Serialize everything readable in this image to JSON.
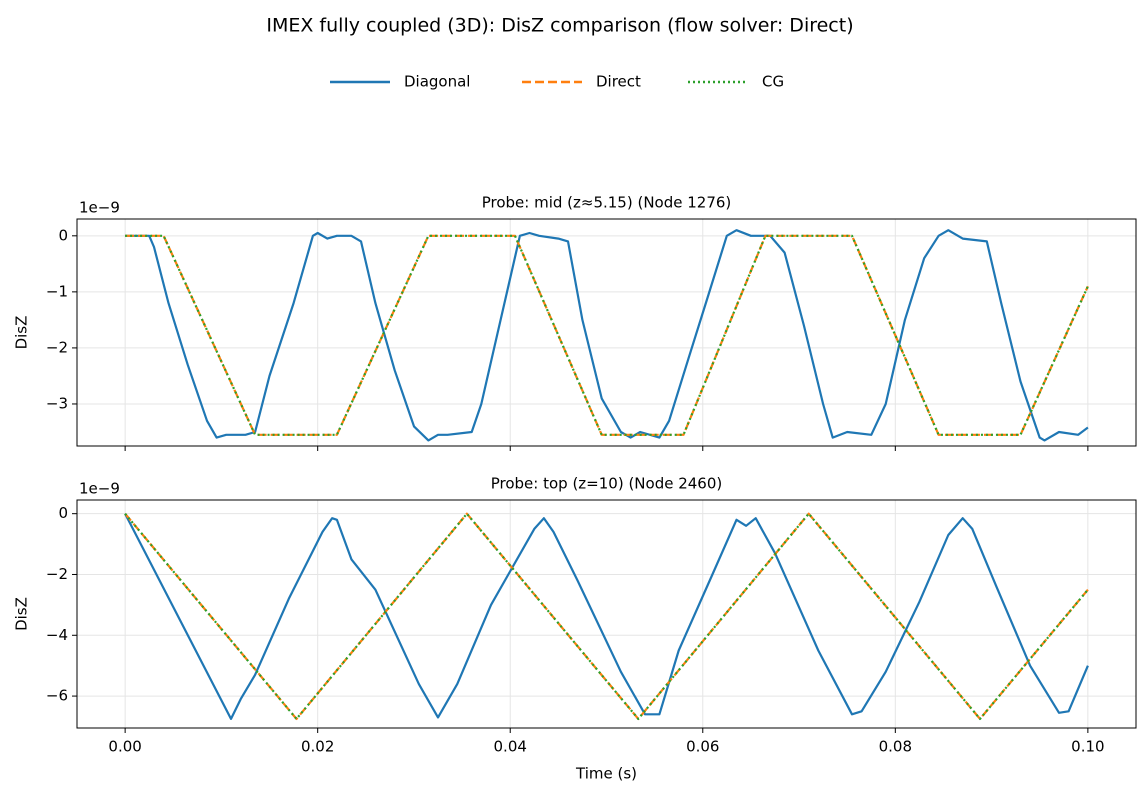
{
  "title": "IMEX fully coupled (3D): DisZ comparison (flow solver: Direct)",
  "chart_data": [
    {
      "type": "line",
      "title": "Probe: mid (z≈5.15) (Node 1276)",
      "y_label": "DisZ",
      "offset_label": "1e−9",
      "xlim": [
        -0.005,
        0.105
      ],
      "xticks": [
        0,
        0.02,
        0.04,
        0.06,
        0.08,
        0.1
      ],
      "ylim": [
        -3.75,
        0.3
      ],
      "yticks": [
        {
          "value": -3,
          "label": "−3"
        },
        {
          "value": -2,
          "label": "−2"
        },
        {
          "value": -1,
          "label": "−1"
        },
        0
      ],
      "grid": true,
      "series": [
        {
          "name": "Diagonal",
          "color": "#1f77b4",
          "style": "solid",
          "x": [
            0,
            0.0025,
            0.003,
            0.0045,
            0.0065,
            0.0085,
            0.0095,
            0.0105,
            0.0125,
            0.0135,
            0.015,
            0.0175,
            0.0195,
            0.02,
            0.021,
            0.022,
            0.0235,
            0.0245,
            0.026,
            0.028,
            0.03,
            0.0315,
            0.0325,
            0.0335,
            0.036,
            0.037,
            0.039,
            0.041,
            0.042,
            0.043,
            0.045,
            0.046,
            0.0475,
            0.0495,
            0.0515,
            0.0525,
            0.0535,
            0.0555,
            0.0565,
            0.0585,
            0.0605,
            0.0625,
            0.0635,
            0.065,
            0.067,
            0.0685,
            0.0705,
            0.0725,
            0.0735,
            0.075,
            0.0775,
            0.079,
            0.081,
            0.083,
            0.0845,
            0.0855,
            0.087,
            0.0895,
            0.091,
            0.093,
            0.095,
            0.0955,
            0.097,
            0.099,
            0.1
          ],
          "values": [
            0,
            0,
            -0.2,
            -1.2,
            -2.3,
            -3.3,
            -3.6,
            -3.55,
            -3.55,
            -3.5,
            -2.5,
            -1.2,
            0,
            0.05,
            -0.05,
            0,
            0,
            -0.1,
            -1.2,
            -2.4,
            -3.4,
            -3.65,
            -3.55,
            -3.55,
            -3.5,
            -3,
            -1.5,
            0,
            0.05,
            0,
            -0.05,
            -0.1,
            -1.5,
            -2.9,
            -3.5,
            -3.6,
            -3.5,
            -3.6,
            -3.3,
            -2.2,
            -1.1,
            0,
            0.1,
            0,
            0,
            -0.3,
            -1.6,
            -3,
            -3.6,
            -3.5,
            -3.55,
            -3,
            -1.5,
            -0.4,
            0,
            0.1,
            -0.05,
            -0.1,
            -1.2,
            -2.6,
            -3.6,
            -3.65,
            -3.5,
            -3.55,
            -3.42
          ]
        },
        {
          "name": "Direct",
          "color": "#ff7f0e",
          "style": "dashed",
          "x": [
            0,
            0.004,
            0.0135,
            0.022,
            0.0315,
            0.0405,
            0.0495,
            0.058,
            0.0665,
            0.0755,
            0.0845,
            0.093,
            0.1
          ],
          "values": [
            0,
            0,
            -3.55,
            -3.55,
            0,
            0,
            -3.55,
            -3.55,
            0,
            0,
            -3.55,
            -3.55,
            -0.9
          ]
        },
        {
          "name": "CG",
          "color": "#2ca02c",
          "style": "dotted",
          "x": [
            0,
            0.004,
            0.0135,
            0.022,
            0.0315,
            0.0405,
            0.0495,
            0.058,
            0.0665,
            0.0755,
            0.0845,
            0.093,
            0.1
          ],
          "values": [
            0,
            0,
            -3.55,
            -3.55,
            0,
            0,
            -3.55,
            -3.55,
            0,
            0,
            -3.55,
            -3.55,
            -0.9
          ]
        }
      ]
    },
    {
      "type": "line",
      "title": "Probe: top (z=10) (Node 2460)",
      "x_label": "Time (s)",
      "y_label": "DisZ",
      "offset_label": "1e−9",
      "xlim": [
        -0.005,
        0.105
      ],
      "xticks": [
        {
          "value": 0,
          "label": "0.00"
        },
        {
          "value": 0.02,
          "label": "0.02"
        },
        {
          "value": 0.04,
          "label": "0.04"
        },
        {
          "value": 0.06,
          "label": "0.06"
        },
        {
          "value": 0.08,
          "label": "0.08"
        },
        {
          "value": 0.1,
          "label": "0.10"
        }
      ],
      "ylim": [
        -7.05,
        0.45
      ],
      "yticks": [
        {
          "value": -6,
          "label": "−6"
        },
        {
          "value": -4,
          "label": "−4"
        },
        {
          "value": -2,
          "label": "−2"
        },
        0
      ],
      "grid": true,
      "series": [
        {
          "name": "Diagonal",
          "color": "#1f77b4",
          "style": "solid",
          "x": [
            0,
            0.011,
            0.012,
            0.0135,
            0.017,
            0.0205,
            0.0215,
            0.022,
            0.0235,
            0.026,
            0.0305,
            0.0325,
            0.0345,
            0.038,
            0.0425,
            0.0435,
            0.0445,
            0.047,
            0.0515,
            0.054,
            0.0555,
            0.0575,
            0.061,
            0.0635,
            0.0645,
            0.0655,
            0.0675,
            0.072,
            0.0755,
            0.0765,
            0.079,
            0.0825,
            0.0855,
            0.087,
            0.088,
            0.0905,
            0.094,
            0.097,
            0.098,
            0.1
          ],
          "values": [
            0,
            -6.75,
            -6.1,
            -5.3,
            -2.8,
            -0.6,
            -0.15,
            -0.2,
            -1.5,
            -2.5,
            -5.6,
            -6.7,
            -5.6,
            -3,
            -0.5,
            -0.15,
            -0.6,
            -2.2,
            -5.2,
            -6.6,
            -6.6,
            -4.5,
            -2,
            -0.2,
            -0.4,
            -0.15,
            -1.3,
            -4.5,
            -6.6,
            -6.5,
            -5.2,
            -2.9,
            -0.7,
            -0.15,
            -0.5,
            -2.4,
            -5,
            -6.55,
            -6.5,
            -5
          ]
        },
        {
          "name": "Direct",
          "color": "#ff7f0e",
          "style": "dashed",
          "x": [
            0,
            0.0178,
            0.0355,
            0.0533,
            0.071,
            0.0888,
            0.1
          ],
          "values": [
            0,
            -6.75,
            0,
            -6.75,
            0,
            -6.75,
            -2.5
          ]
        },
        {
          "name": "CG",
          "color": "#2ca02c",
          "style": "dotted",
          "x": [
            0,
            0.0178,
            0.0355,
            0.0533,
            0.071,
            0.0888,
            0.1
          ],
          "values": [
            0,
            -6.75,
            0,
            -6.75,
            0,
            -6.75,
            -2.5
          ]
        }
      ]
    }
  ]
}
